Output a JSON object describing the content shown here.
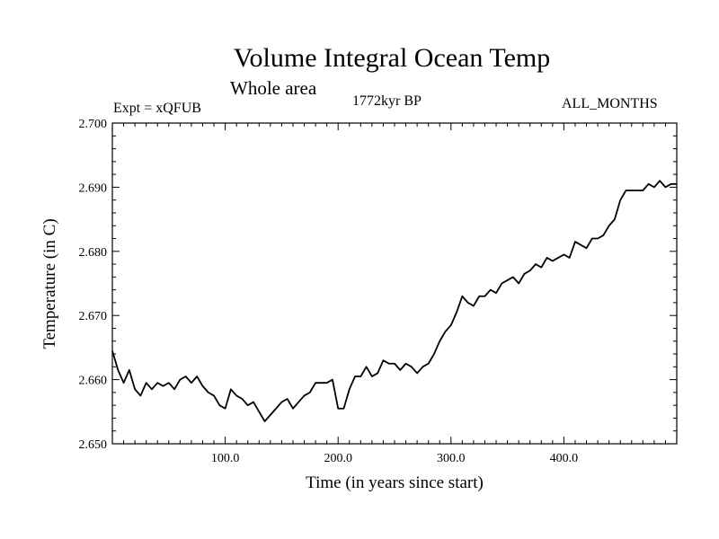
{
  "chart_data": {
    "type": "line",
    "title": "Volume Integral Ocean Temp",
    "subtitle": "Whole area",
    "annotations": {
      "experiment": "Expt = xQFUB",
      "period": "1772kyr BP",
      "months": "ALL_MONTHS"
    },
    "xlabel": "Time (in years since start)",
    "ylabel": "Temperature (in C)",
    "xlim": [
      0,
      500
    ],
    "ylim": [
      2.65,
      2.7
    ],
    "xticks": [
      {
        "value": 100,
        "label": "100.0"
      },
      {
        "value": 200,
        "label": "200.0"
      },
      {
        "value": 300,
        "label": "300.0"
      },
      {
        "value": 400,
        "label": "400.0"
      }
    ],
    "yticks": [
      {
        "value": 2.65,
        "label": "2.650"
      },
      {
        "value": 2.66,
        "label": "2.660"
      },
      {
        "value": 2.67,
        "label": "2.670"
      },
      {
        "value": 2.68,
        "label": "2.680"
      },
      {
        "value": 2.69,
        "label": "2.690"
      },
      {
        "value": 2.7,
        "label": "2.700"
      }
    ],
    "grid": false,
    "series": [
      {
        "name": "Volume integral ocean temperature",
        "color": "#000000",
        "x": [
          0,
          5,
          10,
          15,
          20,
          25,
          30,
          35,
          40,
          45,
          50,
          55,
          60,
          65,
          70,
          75,
          80,
          85,
          90,
          95,
          100,
          105,
          110,
          115,
          120,
          125,
          130,
          135,
          140,
          145,
          150,
          155,
          160,
          165,
          170,
          175,
          180,
          185,
          190,
          195,
          200,
          205,
          210,
          215,
          220,
          225,
          230,
          235,
          240,
          245,
          250,
          255,
          260,
          265,
          270,
          275,
          280,
          285,
          290,
          295,
          300,
          305,
          310,
          315,
          320,
          325,
          330,
          335,
          340,
          345,
          350,
          355,
          360,
          365,
          370,
          375,
          380,
          385,
          390,
          395,
          400,
          405,
          410,
          415,
          420,
          425,
          430,
          435,
          440,
          445,
          450,
          455,
          460,
          465,
          470,
          475,
          480,
          485,
          490,
          495,
          500
        ],
        "values": [
          2.6645,
          2.6615,
          2.6595,
          2.6615,
          2.6585,
          2.6575,
          2.6595,
          2.6585,
          2.6595,
          2.659,
          2.6595,
          2.6585,
          2.66,
          2.6605,
          2.6595,
          2.6605,
          2.659,
          2.658,
          2.6575,
          2.656,
          2.6555,
          2.6585,
          2.6575,
          2.657,
          2.656,
          2.6565,
          2.655,
          2.6535,
          2.6545,
          2.6555,
          2.6565,
          2.657,
          2.6555,
          2.6565,
          2.6575,
          2.658,
          2.6595,
          2.6595,
          2.6595,
          2.66,
          2.6555,
          2.6555,
          2.6585,
          2.6605,
          2.6605,
          2.662,
          2.6605,
          2.661,
          2.663,
          2.6625,
          2.6625,
          2.6615,
          2.6625,
          2.662,
          2.661,
          2.662,
          2.6625,
          2.664,
          2.666,
          2.6675,
          2.6685,
          2.6705,
          2.673,
          2.672,
          2.6715,
          2.673,
          2.673,
          2.674,
          2.6735,
          2.675,
          2.6755,
          2.676,
          2.675,
          2.6765,
          2.677,
          2.678,
          2.6775,
          2.679,
          2.6785,
          2.679,
          2.6795,
          2.679,
          2.6815,
          2.681,
          2.6805,
          2.682,
          2.682,
          2.6825,
          2.684,
          2.685,
          2.688,
          2.6895,
          2.6895,
          2.6895,
          2.6895,
          2.6905,
          2.69,
          2.691,
          2.69,
          2.6905,
          2.6905
        ]
      }
    ]
  }
}
